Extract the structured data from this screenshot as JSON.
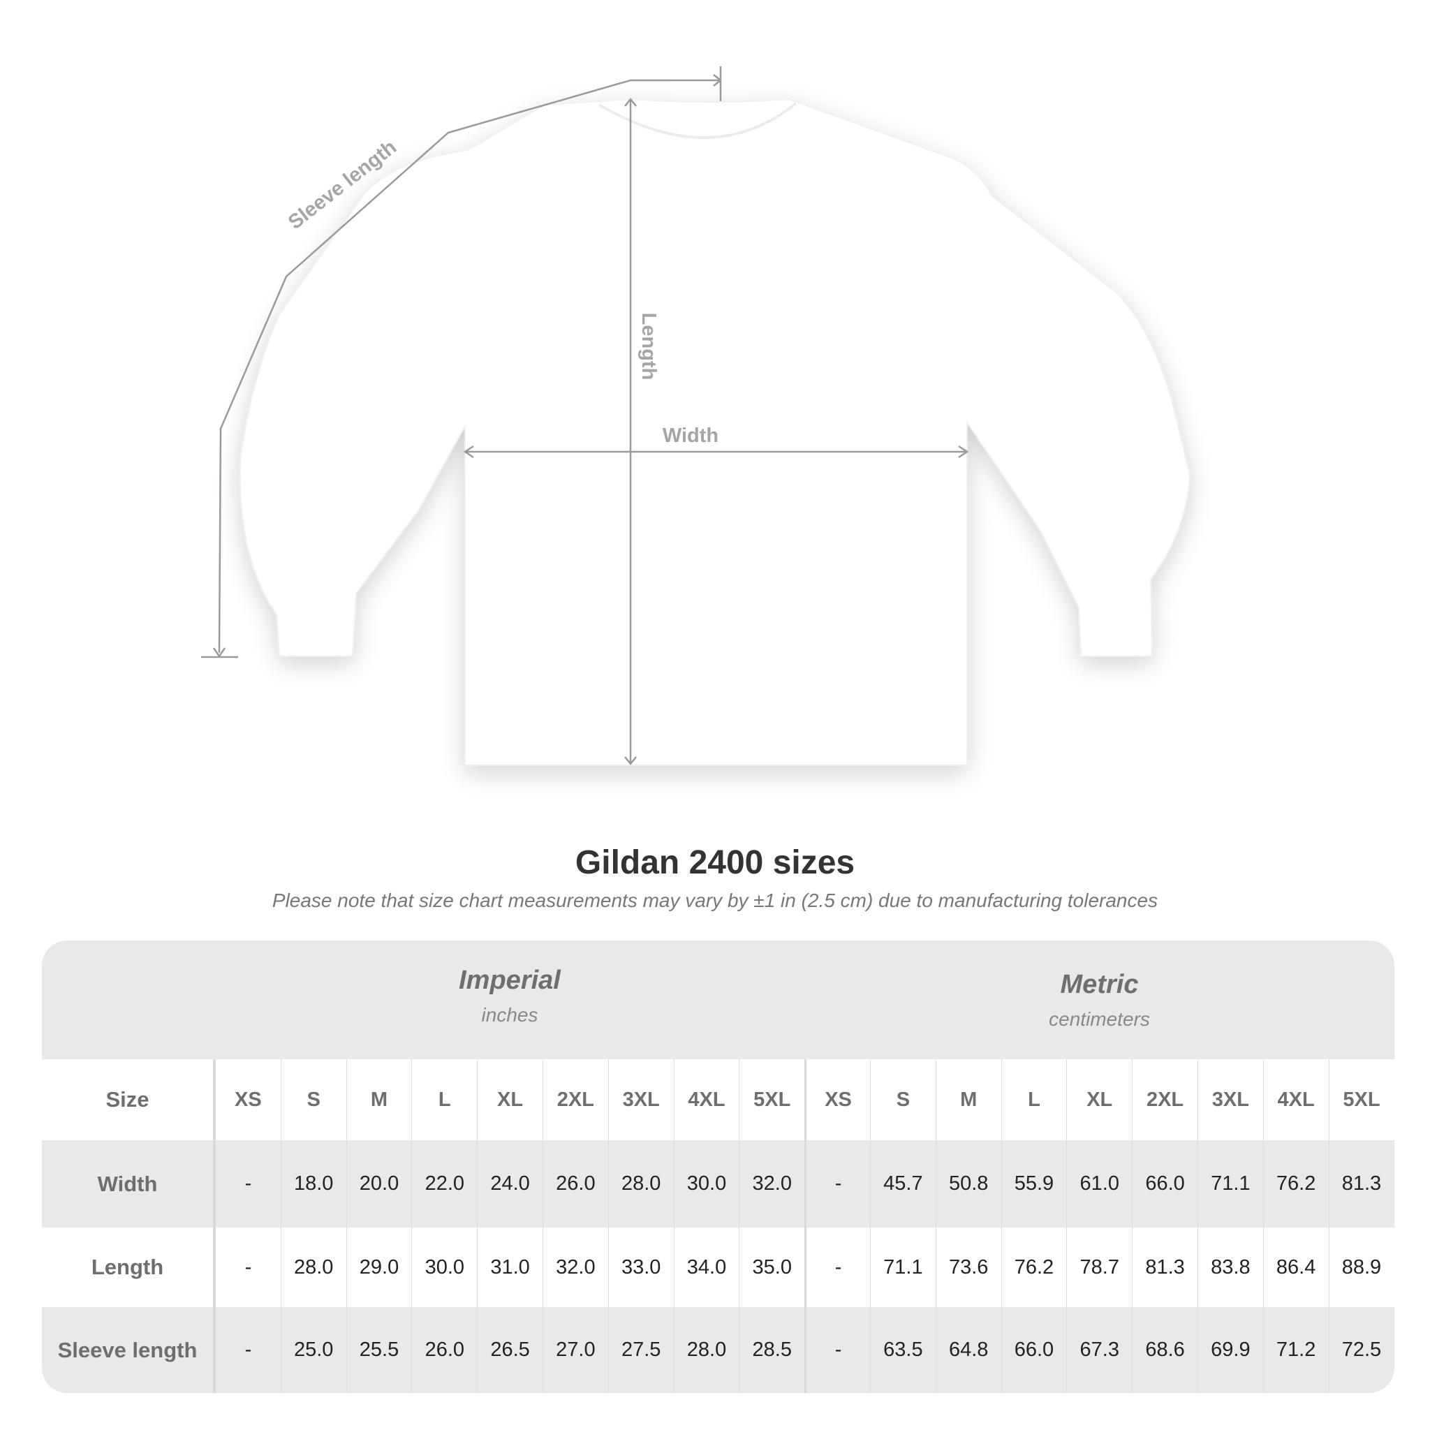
{
  "diagram": {
    "labels": {
      "sleeve_length": "Sleeve length",
      "length": "Length",
      "width": "Width"
    },
    "colors": {
      "shirt": "#ffffff",
      "measure_line": "#9a9a9a"
    }
  },
  "title": "Gildan 2400 sizes",
  "subtitle": "Please note that size chart measurements may vary by ±1 in (2.5 cm) due to manufacturing tolerances",
  "table": {
    "imperial": {
      "name": "Imperial",
      "unit": "inches"
    },
    "metric": {
      "name": "Metric",
      "unit": "centimeters"
    },
    "size_label": "Size",
    "sizes": [
      "XS",
      "S",
      "M",
      "L",
      "XL",
      "2XL",
      "3XL",
      "4XL",
      "5XL",
      "XS",
      "S",
      "M",
      "L",
      "XL",
      "2XL",
      "3XL",
      "4XL",
      "5XL"
    ],
    "rows": [
      {
        "label": "Width",
        "values": [
          "-",
          "18.0",
          "20.0",
          "22.0",
          "24.0",
          "26.0",
          "28.0",
          "30.0",
          "32.0",
          "-",
          "45.7",
          "50.8",
          "55.9",
          "61.0",
          "66.0",
          "71.1",
          "76.2",
          "81.3"
        ]
      },
      {
        "label": "Length",
        "values": [
          "-",
          "28.0",
          "29.0",
          "30.0",
          "31.0",
          "32.0",
          "33.0",
          "34.0",
          "35.0",
          "-",
          "71.1",
          "73.6",
          "76.2",
          "78.7",
          "81.3",
          "83.8",
          "86.4",
          "88.9"
        ]
      },
      {
        "label": "Sleeve length",
        "values": [
          "-",
          "25.0",
          "25.5",
          "26.0",
          "26.5",
          "27.0",
          "27.5",
          "28.0",
          "28.5",
          "-",
          "63.5",
          "64.8",
          "66.0",
          "67.3",
          "68.6",
          "69.9",
          "71.2",
          "72.5"
        ]
      }
    ]
  }
}
